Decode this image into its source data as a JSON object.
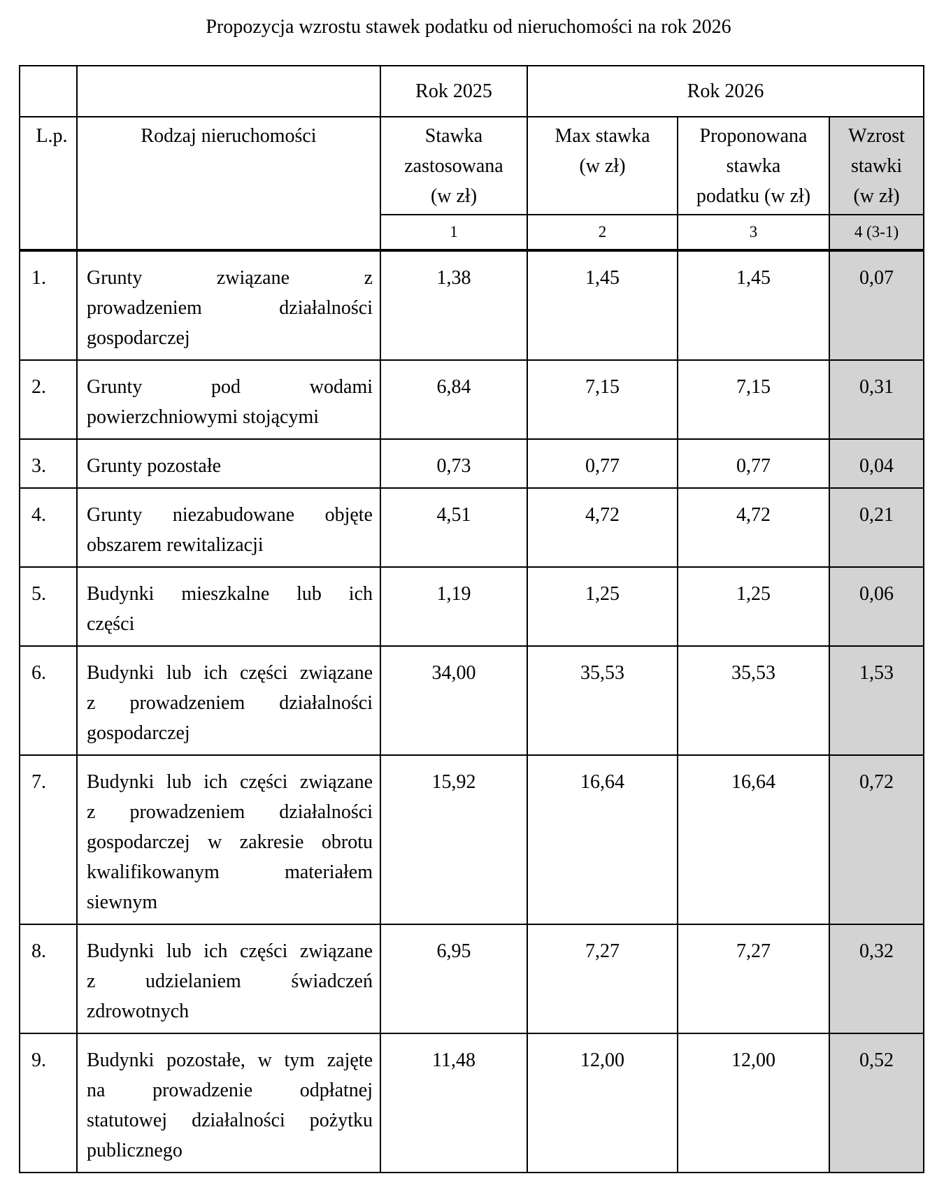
{
  "title": "Propozycja wzrostu stawek podatku od nieruchomości na rok 2026",
  "colors": {
    "highlight_column": "#d3d3d3",
    "border": "#000000",
    "text": "#000000"
  },
  "table": {
    "year_headers": {
      "col2025": "Rok 2025",
      "col2026": "Rok 2026"
    },
    "columns": {
      "lp": "L.p.",
      "rodzaj": "Rodzaj nieruchomości",
      "stawka_zastosowana": "Stawka zastosowana (w zł)",
      "stawka_zastosowana_lines": [
        "Stawka",
        "zastosowana",
        "(w zł)"
      ],
      "max_stawka": "Max stawka (w zł)",
      "max_stawka_lines": [
        "Max stawka",
        "(w zł)"
      ],
      "proponowana": "Proponowana stawka podatku (w zł)",
      "proponowana_lines": [
        "Proponowana",
        "stawka",
        "podatku (w zł)"
      ],
      "wzrost": "Wzrost stawki (w zł)",
      "wzrost_lines": [
        "Wzrost",
        "stawki",
        "(w zł)"
      ]
    },
    "numbering": [
      "1",
      "2",
      "3",
      "4 (3-1)"
    ],
    "rows": [
      {
        "lp": "1.",
        "name": "Grunty związane z prowadzeniem działalności gospodarczej",
        "name_lines": [
          "Grunty związane z",
          "prowadzeniem działalności",
          "gospodarczej"
        ],
        "stawka": "1,38",
        "max": "1,45",
        "proponowana": "1,45",
        "wzrost": "0,07"
      },
      {
        "lp": "2.",
        "name": "Grunty pod wodami powierzchniowymi stojącymi",
        "name_lines": [
          "Grunty pod wodami",
          "powierzchniowymi stojącymi"
        ],
        "stawka": "6,84",
        "max": "7,15",
        "proponowana": "7,15",
        "wzrost": "0,31"
      },
      {
        "lp": "3.",
        "name": "Grunty pozostałe",
        "name_lines": [
          "Grunty pozostałe"
        ],
        "stawka": "0,73",
        "max": "0,77",
        "proponowana": "0,77",
        "wzrost": "0,04"
      },
      {
        "lp": "4.",
        "name": "Grunty niezabudowane objęte obszarem rewitalizacji",
        "name_lines": [
          "Grunty niezabudowane objęte",
          "obszarem rewitalizacji"
        ],
        "stawka": "4,51",
        "max": "4,72",
        "proponowana": "4,72",
        "wzrost": "0,21"
      },
      {
        "lp": "5.",
        "name": "Budynki mieszkalne lub ich części",
        "name_lines": [
          "Budynki mieszkalne lub ich",
          "części"
        ],
        "stawka": "1,19",
        "max": "1,25",
        "proponowana": "1,25",
        "wzrost": "0,06"
      },
      {
        "lp": "6.",
        "name": "Budynki lub ich części związane z prowadzeniem działalności gospodarczej",
        "name_lines": [
          "Budynki lub ich części związane",
          "z prowadzeniem działalności",
          "gospodarczej"
        ],
        "stawka": "34,00",
        "max": "35,53",
        "proponowana": "35,53",
        "wzrost": "1,53"
      },
      {
        "lp": "7.",
        "name": "Budynki lub ich części związane z prowadzeniem działalności gospodarczej w zakresie obrotu kwalifikowanym materiałem siewnym",
        "name_lines": [
          "Budynki lub ich części związane",
          "z prowadzeniem działalności",
          "gospodarczej w zakresie obrotu",
          "kwalifikowanym materiałem",
          "siewnym"
        ],
        "stawka": "15,92",
        "max": "16,64",
        "proponowana": "16,64",
        "wzrost": "0,72"
      },
      {
        "lp": "8.",
        "name": "Budynki lub ich części związane z udzielaniem świadczeń zdrowotnych",
        "name_lines": [
          "Budynki lub ich części związane",
          "z udzielaniem świadczeń",
          "zdrowotnych"
        ],
        "stawka": "6,95",
        "max": "7,27",
        "proponowana": "7,27",
        "wzrost": "0,32"
      },
      {
        "lp": "9.",
        "name": "Budynki pozostałe, w tym zajęte na prowadzenie odpłatnej statutowej działalności pożytku publicznego",
        "name_lines": [
          "Budynki pozostałe, w tym zajęte",
          "na prowadzenie odpłatnej",
          "statutowej działalności pożytku",
          "publicznego"
        ],
        "stawka": "11,48",
        "max": "12,00",
        "proponowana": "12,00",
        "wzrost": "0,52"
      }
    ]
  }
}
